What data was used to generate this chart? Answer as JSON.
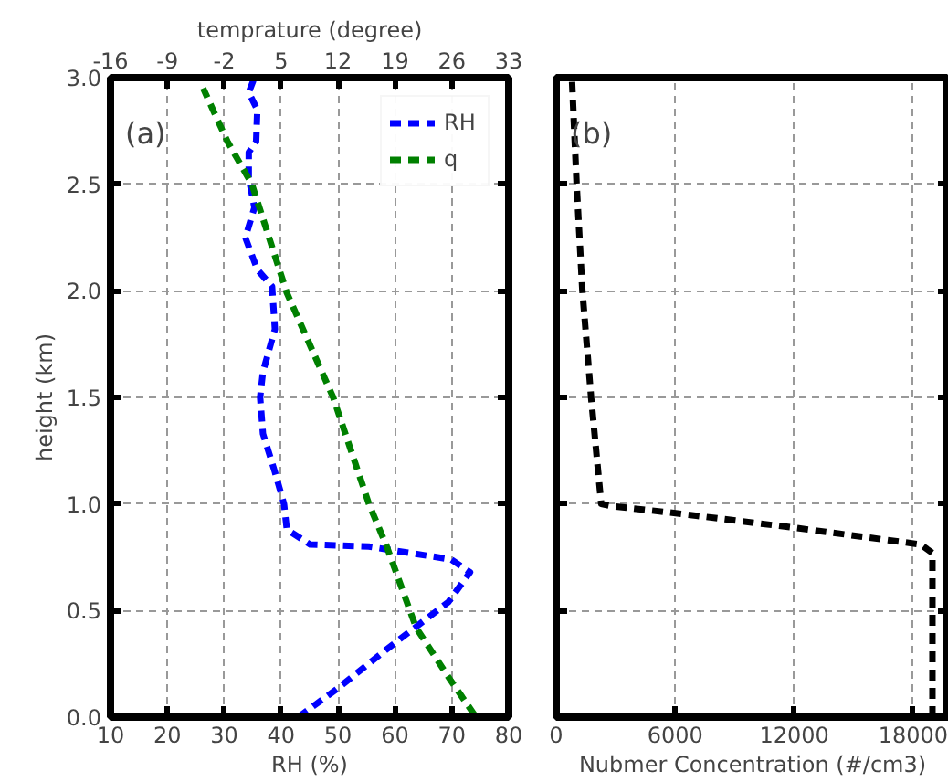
{
  "chart_data": [
    {
      "type": "line",
      "xlabel": "RH (%)",
      "ylabel": "height (km)",
      "x2label": "temprature (degree)",
      "xlim": [
        10,
        80
      ],
      "xticks": [
        10,
        20,
        30,
        40,
        50,
        60,
        70,
        80
      ],
      "x2lim": [
        -16,
        33
      ],
      "x2ticks": [
        -16,
        -9,
        -2,
        5,
        12,
        19,
        26,
        33
      ],
      "ylim": [
        0,
        3
      ],
      "yticks": [
        {
          "value": 0,
          "label": "0.0"
        },
        0.5,
        {
          "value": 1,
          "label": "1.0"
        },
        1.5,
        {
          "value": 2,
          "label": "2.0"
        },
        2.5,
        {
          "value": 3,
          "label": "3.0"
        }
      ],
      "grid": true,
      "legend": "top right",
      "line_style": "dashed",
      "annotations": [
        "(a)"
      ],
      "series": [
        {
          "name": "RH",
          "color": "#0000ff",
          "x": [
            43,
            49.7,
            59.6,
            69.4,
            73.2,
            69.9,
            55.4,
            45.1,
            41,
            40.5,
            38.9,
            36.8,
            36.3,
            36.8,
            38.9,
            38.4,
            35.8,
            33.7,
            35.3,
            34.3,
            34.3,
            35.6,
            35.8,
            34.3,
            35.3
          ],
          "values": [
            0,
            0.13,
            0.34,
            0.54,
            0.68,
            0.74,
            0.8,
            0.81,
            0.88,
            1.0,
            1.15,
            1.33,
            1.5,
            1.62,
            1.82,
            2.02,
            2.1,
            2.25,
            2.39,
            2.53,
            2.65,
            2.7,
            2.85,
            2.93,
            3.0
          ]
        },
        {
          "name": "q",
          "color": "#008000",
          "axis": "x2",
          "x": [
            28.8,
            25.9,
            21.6,
            18,
            15.8,
            11.4,
            5.7,
            1.4,
            -1.6,
            -4.6
          ],
          "values": [
            0.01,
            0.17,
            0.42,
            0.8,
            1.0,
            1.5,
            1.99,
            2.5,
            2.7,
            2.95
          ]
        }
      ]
    },
    {
      "type": "line",
      "xlabel": "Nubmer Concentration (#/cm3)",
      "xlim": [
        0,
        19800
      ],
      "xticks": [
        0,
        6000,
        12000,
        18000
      ],
      "ylim": [
        0,
        3
      ],
      "yticks": [
        0,
        0.5,
        1,
        1.5,
        2,
        2.5,
        3
      ],
      "tick_labels": "x",
      "grid": true,
      "line_style": "dashed",
      "annotations": [
        "(b)"
      ],
      "series": [
        {
          "color": "#000000",
          "x": [
            18970,
            18970,
            18380,
            11900,
            5735,
            2800,
            2270,
            1760,
            1320,
            1030,
            800
          ],
          "values": [
            0,
            0.77,
            0.81,
            0.89,
            0.96,
            0.99,
            1.0,
            1.5,
            2.0,
            2.5,
            2.98
          ]
        }
      ]
    }
  ]
}
